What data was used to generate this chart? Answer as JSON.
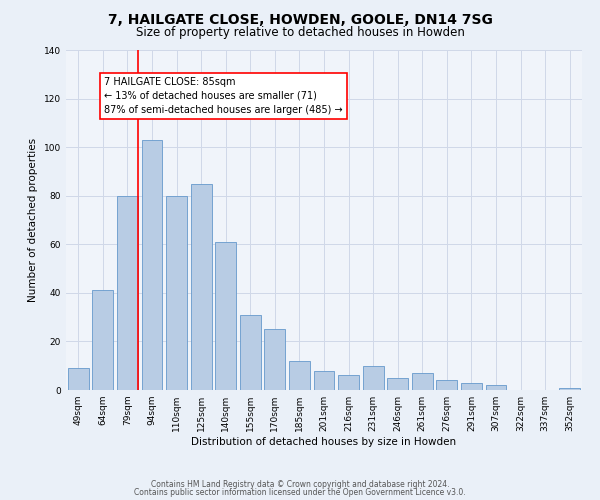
{
  "title": "7, HAILGATE CLOSE, HOWDEN, GOOLE, DN14 7SG",
  "subtitle": "Size of property relative to detached houses in Howden",
  "xlabel": "Distribution of detached houses by size in Howden",
  "ylabel": "Number of detached properties",
  "categories": [
    "49sqm",
    "64sqm",
    "79sqm",
    "94sqm",
    "110sqm",
    "125sqm",
    "140sqm",
    "155sqm",
    "170sqm",
    "185sqm",
    "201sqm",
    "216sqm",
    "231sqm",
    "246sqm",
    "261sqm",
    "276sqm",
    "291sqm",
    "307sqm",
    "322sqm",
    "337sqm",
    "352sqm"
  ],
  "values": [
    9,
    41,
    80,
    103,
    80,
    85,
    61,
    31,
    25,
    12,
    8,
    6,
    10,
    5,
    7,
    4,
    3,
    2,
    0,
    0,
    1
  ],
  "bar_color": "#b8cce4",
  "bar_edge_color": "#6699cc",
  "vline_x_index": 2,
  "vline_color": "red",
  "annotation_title": "7 HAILGATE CLOSE: 85sqm",
  "annotation_line1": "← 13% of detached houses are smaller (71)",
  "annotation_line2": "87% of semi-detached houses are larger (485) →",
  "annotation_box_color": "white",
  "annotation_box_edge_color": "red",
  "ylim": [
    0,
    140
  ],
  "yticks": [
    0,
    20,
    40,
    60,
    80,
    100,
    120,
    140
  ],
  "footer1": "Contains HM Land Registry data © Crown copyright and database right 2024.",
  "footer2": "Contains public sector information licensed under the Open Government Licence v3.0.",
  "bg_color": "#eaf0f8",
  "plot_bg_color": "#f0f4fa",
  "grid_color": "#d0d8e8",
  "title_fontsize": 10,
  "subtitle_fontsize": 8.5,
  "label_fontsize": 7.5,
  "tick_fontsize": 6.5,
  "annotation_fontsize": 7.0,
  "footer_fontsize": 5.5
}
